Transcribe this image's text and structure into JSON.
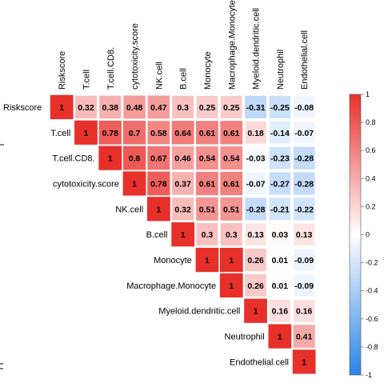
{
  "chart_data": {
    "type": "heatmap",
    "title": "",
    "variables": [
      "Riskscore",
      "T.cell",
      "T.cell.CD8.",
      "cytotoxicity.score",
      "NK.cell",
      "B.cell",
      "Monocyte",
      "Macrophage.Monocyte",
      "Myeloid.dendritic.cell",
      "Neutrophil",
      "Endothelial.cell"
    ],
    "upper_triangle": [
      [
        1,
        0.32,
        0.38,
        0.48,
        0.47,
        0.3,
        0.25,
        0.25,
        -0.31,
        -0.25,
        -0.08
      ],
      [
        1,
        0.78,
        0.7,
        0.58,
        0.64,
        0.61,
        0.61,
        0.18,
        -0.14,
        -0.07
      ],
      [
        1,
        0.8,
        0.67,
        0.46,
        0.54,
        0.54,
        -0.03,
        -0.23,
        -0.28
      ],
      [
        1,
        0.78,
        0.37,
        0.61,
        0.61,
        -0.07,
        -0.27,
        -0.28
      ],
      [
        1,
        0.32,
        0.51,
        0.51,
        -0.28,
        -0.21,
        -0.22
      ],
      [
        1,
        0.3,
        0.3,
        0.13,
        0.03,
        0.13
      ],
      [
        1,
        1,
        0.26,
        0.01,
        -0.09
      ],
      [
        1,
        0.26,
        0.01,
        -0.09
      ],
      [
        1,
        0.16,
        0.16
      ],
      [
        1,
        0.41
      ],
      [
        1
      ]
    ],
    "colorbar": {
      "min": -1,
      "max": 1,
      "ticks": [
        "1",
        "0.8",
        "0.6",
        "0.4",
        "0.2",
        "0",
        "-0.2",
        "-0.4",
        "-0.6",
        "-0.8",
        "-1"
      ],
      "colors": {
        "negative": "#2b83e6",
        "zero": "#ffffff",
        "positive": "#e8302b"
      }
    },
    "legend_position": "right"
  }
}
